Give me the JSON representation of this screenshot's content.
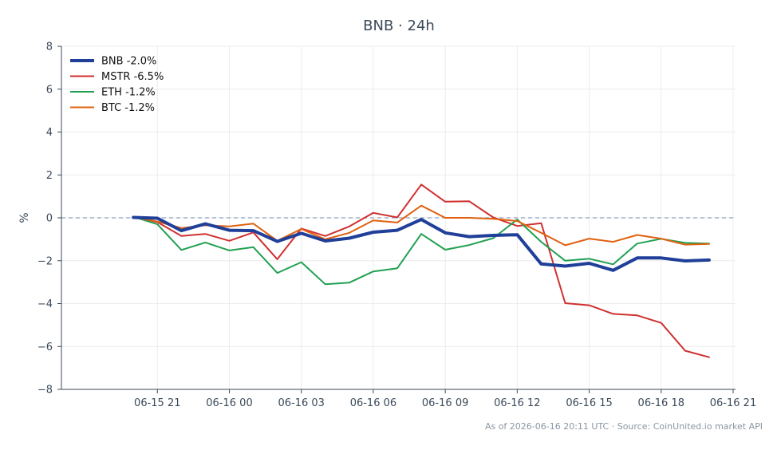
{
  "chart_data": {
    "type": "line",
    "title": "BNB · 24h",
    "xlabel": "",
    "ylabel": "%",
    "footer": "As of 2026-06-16 20:11 UTC · Source: CoinUnited.io market API",
    "ylim": [
      -8,
      8
    ],
    "yticks": [
      "8",
      "6",
      "4",
      "2",
      "0",
      "−2",
      "−4",
      "−6",
      "−8"
    ],
    "ytick_values": [
      8,
      6,
      4,
      2,
      0,
      -2,
      -4,
      -6,
      -8
    ],
    "xlim_hours": [
      -4.0,
      24.1
    ],
    "xticks": [
      "06-15 21",
      "06-16 00",
      "06-16 03",
      "06-16 06",
      "06-16 09",
      "06-16 12",
      "06-16 15",
      "06-16 18",
      "06-16 21"
    ],
    "xtick_hours": [
      0,
      3,
      6,
      9,
      12,
      15,
      18,
      21,
      24
    ],
    "x_hours": [
      -1,
      0,
      1,
      2,
      3,
      4,
      5,
      6,
      7,
      8,
      9,
      10,
      11,
      12,
      13,
      14,
      15,
      16,
      17,
      18,
      19,
      20,
      21,
      22,
      23
    ],
    "grid": true,
    "legend_position": "top-left",
    "baseline": 0,
    "series": [
      {
        "name": "BNB -2.0%",
        "color": "#1f3f99",
        "width": 4,
        "values": [
          0.02,
          -0.02,
          -0.6,
          -0.28,
          -0.58,
          -0.6,
          -1.1,
          -0.72,
          -1.08,
          -0.95,
          -0.67,
          -0.58,
          -0.08,
          -0.7,
          -0.88,
          -0.82,
          -0.79,
          -2.15,
          -2.25,
          -2.12,
          -2.45,
          -1.87,
          -1.87,
          -2.01,
          -1.97
        ]
      },
      {
        "name": "MSTR -6.5%",
        "color": "#d03030",
        "width": 2,
        "values": [
          0.05,
          -0.2,
          -0.85,
          -0.75,
          -1.07,
          -0.68,
          -1.93,
          -0.5,
          -0.85,
          -0.4,
          0.23,
          0.02,
          1.55,
          0.75,
          0.77,
          0.02,
          -0.38,
          -0.25,
          -3.98,
          -4.08,
          -4.48,
          -4.55,
          -4.9,
          -6.2,
          -6.5
        ]
      },
      {
        "name": "ETH -1.2%",
        "color": "#21a052",
        "width": 2,
        "values": [
          0.05,
          -0.3,
          -1.5,
          -1.15,
          -1.52,
          -1.37,
          -2.57,
          -2.07,
          -3.1,
          -3.02,
          -2.5,
          -2.35,
          -0.75,
          -1.49,
          -1.27,
          -0.95,
          -0.08,
          -1.12,
          -2.0,
          -1.91,
          -2.17,
          -1.2,
          -0.98,
          -1.17,
          -1.2
        ]
      },
      {
        "name": "BTC -1.2%",
        "color": "#e06010",
        "width": 2,
        "values": [
          0.03,
          -0.17,
          -0.48,
          -0.35,
          -0.4,
          -0.27,
          -1.07,
          -0.52,
          -1.0,
          -0.7,
          -0.12,
          -0.22,
          0.57,
          0.0,
          0.0,
          -0.05,
          -0.15,
          -0.7,
          -1.28,
          -0.97,
          -1.12,
          -0.8,
          -0.97,
          -1.25,
          -1.22
        ]
      }
    ]
  }
}
